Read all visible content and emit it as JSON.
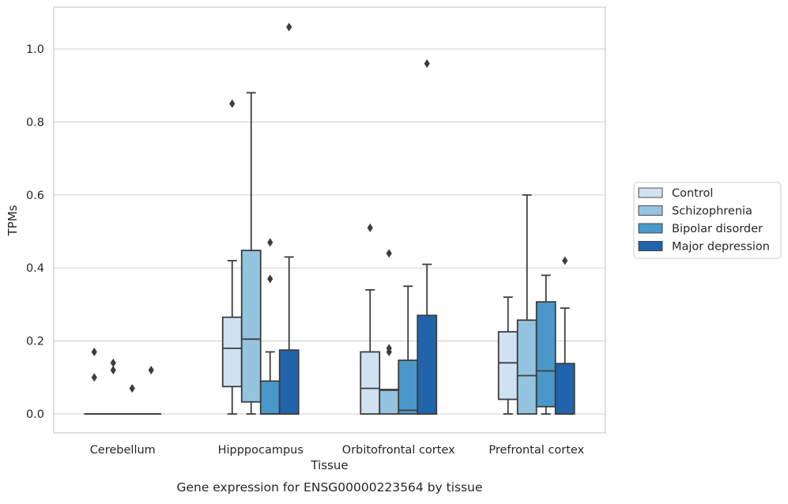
{
  "chart_data": {
    "type": "box",
    "caption": "Gene expression for ENSG00000223564 by tissue",
    "xlabel": "Tissue",
    "ylabel": "TPMs",
    "ylim": [
      -0.05,
      1.12
    ],
    "yticks": [
      0.0,
      0.2,
      0.4,
      0.6,
      0.8,
      1.0
    ],
    "ytick_labels": [
      "0.0",
      "0.2",
      "0.4",
      "0.6",
      "0.8",
      "1.0"
    ],
    "grid": "horizontal",
    "legend_position": "right",
    "categories": [
      "Cerebellum",
      "Hipppocampus",
      "Orbitofrontal cortex",
      "Prefrontal cortex"
    ],
    "series": [
      {
        "name": "Control",
        "color": "#d0e1f2",
        "boxes": [
          {
            "low": 0.0,
            "q1": 0.0,
            "median": 0.0,
            "q3": 0.0,
            "high": 0.0,
            "outliers": [
              0.17,
              0.1
            ]
          },
          {
            "low": 0.0,
            "q1": 0.075,
            "median": 0.18,
            "q3": 0.265,
            "high": 0.42,
            "outliers": [
              0.85
            ]
          },
          {
            "low": 0.0,
            "q1": 0.0,
            "median": 0.07,
            "q3": 0.17,
            "high": 0.34,
            "outliers": [
              0.51
            ]
          },
          {
            "low": 0.0,
            "q1": 0.04,
            "median": 0.14,
            "q3": 0.225,
            "high": 0.32,
            "outliers": []
          }
        ]
      },
      {
        "name": "Schizophrenia",
        "color": "#94c4df",
        "boxes": [
          {
            "low": 0.0,
            "q1": 0.0,
            "median": 0.0,
            "q3": 0.0,
            "high": 0.0,
            "outliers": [
              0.14,
              0.12
            ]
          },
          {
            "low": 0.0,
            "q1": 0.033,
            "median": 0.205,
            "q3": 0.448,
            "high": 0.88,
            "outliers": []
          },
          {
            "low": 0.0,
            "q1": 0.0,
            "median": 0.065,
            "q3": 0.067,
            "high": 0.067,
            "outliers": [
              0.44,
              0.18,
              0.17
            ]
          },
          {
            "low": 0.0,
            "q1": 0.0,
            "median": 0.105,
            "q3": 0.257,
            "high": 0.6,
            "outliers": []
          }
        ]
      },
      {
        "name": "Bipolar disorder",
        "color": "#4a98c9",
        "boxes": [
          {
            "low": 0.0,
            "q1": 0.0,
            "median": 0.0,
            "q3": 0.0,
            "high": 0.0,
            "outliers": [
              0.07
            ]
          },
          {
            "low": 0.0,
            "q1": 0.0,
            "median": 0.0,
            "q3": 0.09,
            "high": 0.17,
            "outliers": [
              0.47,
              0.37
            ]
          },
          {
            "low": 0.0,
            "q1": 0.0,
            "median": 0.01,
            "q3": 0.147,
            "high": 0.35,
            "outliers": []
          },
          {
            "low": 0.0,
            "q1": 0.02,
            "median": 0.118,
            "q3": 0.307,
            "high": 0.38,
            "outliers": []
          }
        ]
      },
      {
        "name": "Major depression",
        "color": "#2164ab",
        "boxes": [
          {
            "low": 0.0,
            "q1": 0.0,
            "median": 0.0,
            "q3": 0.0,
            "high": 0.0,
            "outliers": [
              0.12
            ]
          },
          {
            "low": 0.0,
            "q1": 0.0,
            "median": 0.0,
            "q3": 0.175,
            "high": 0.43,
            "outliers": [
              1.06
            ]
          },
          {
            "low": 0.0,
            "q1": 0.0,
            "median": 0.0,
            "q3": 0.27,
            "high": 0.41,
            "outliers": [
              0.96
            ]
          },
          {
            "low": 0.0,
            "q1": 0.0,
            "median": 0.0,
            "q3": 0.138,
            "high": 0.29,
            "outliers": [
              0.42
            ]
          }
        ]
      }
    ]
  }
}
